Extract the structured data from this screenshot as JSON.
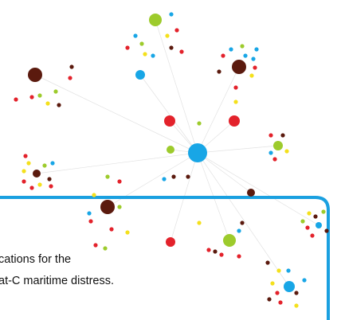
{
  "panel": {
    "lines": [
      "cations for the",
      "at-C maritime distress."
    ]
  }
}
